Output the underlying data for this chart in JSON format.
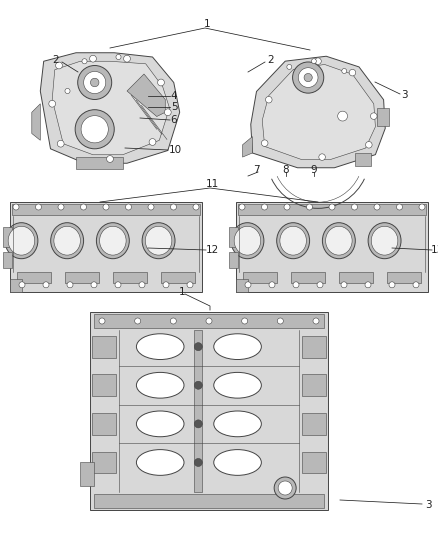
{
  "background_color": "#ffffff",
  "line_color": "#444444",
  "gray_fill": "#d8d8d8",
  "gray_med": "#b8b8b8",
  "gray_dark": "#888888",
  "callout_color": "#222222",
  "callout_fontsize": 7.5,
  "figure_width": 4.38,
  "figure_height": 5.33,
  "dpi": 100
}
